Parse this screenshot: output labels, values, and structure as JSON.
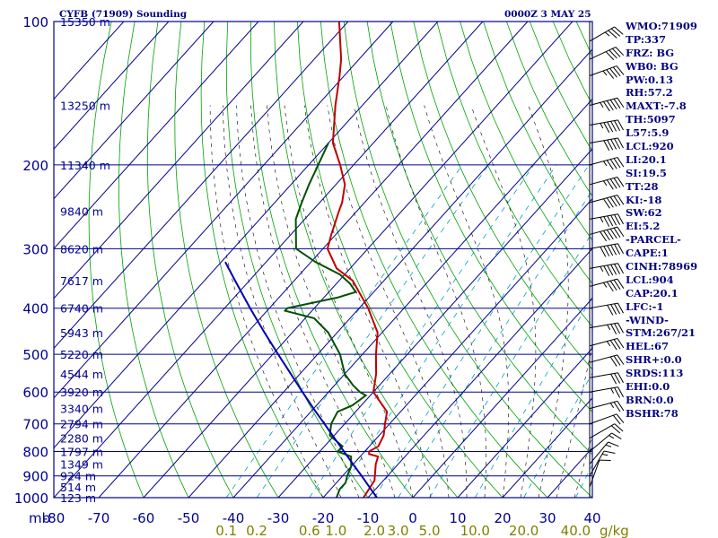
{
  "header": {
    "title": "CYFB (71909) Sounding",
    "time": "0000Z  3 MAY 25"
  },
  "stats": [
    "WMO:71909",
    "TP:337",
    "FRZ: BG",
    "WB0: BG",
    "PW:0.13",
    "RH:57.2",
    "MAXT:-7.8",
    "TH:5097",
    "L57:5.9",
    "LCL:920",
    "LI:20.1",
    "SI:19.5",
    "TT:28",
    "KI:-18",
    "SW:62",
    "EI:5.2",
    "-PARCEL-",
    "CAPE:1",
    "CINH:78969",
    "LCL:904",
    "CAP:20.1",
    "LFC:-1",
    "-WIND-",
    "STM:267/21",
    "HEL:67",
    "SHR+:0.0",
    "SRDS:113",
    "EHI:0.0",
    "BRN:0.0",
    "BSHR:78"
  ],
  "colors": {
    "axis": "#000090",
    "isotherm": "#000090",
    "dry_adiabat": "#00a000",
    "moist_adiabat": "#000000",
    "mixing_ratio": "#00a0c0",
    "temperature": "#c00000",
    "dewpoint": "#005000",
    "parcel": "#0000b0",
    "barb": "#000000",
    "mixing_label": "#808000"
  },
  "chart_data": {
    "type": "skew-t",
    "y_axis": "pressure (mb), log scale",
    "ylim": [
      1000,
      100
    ],
    "xlim": [
      -80,
      40
    ],
    "pressure_ticks": [
      100,
      200,
      300,
      400,
      500,
      600,
      700,
      800,
      900,
      1000
    ],
    "pressure_unit": "mb",
    "temperature_ticks": [
      -80,
      -70,
      -60,
      -50,
      -40,
      -30,
      -20,
      -10,
      0,
      10,
      20,
      30,
      40
    ],
    "mixing_ratio_labels": [
      "0.1",
      "0.2",
      "0.6",
      "1.0",
      "2.0",
      "3.0",
      "5.0",
      "10.0",
      "20.0",
      "40.0"
    ],
    "mixing_ratio_unit": "g/kg",
    "height_labels": [
      {
        "p": 100,
        "text": "15350 m"
      },
      {
        "p": 150,
        "text": "13250 m"
      },
      {
        "p": 200,
        "text": "11340 m"
      },
      {
        "p": 250,
        "text": "9840 m"
      },
      {
        "p": 300,
        "text": "8620 m"
      },
      {
        "p": 350,
        "text": "7617 m"
      },
      {
        "p": 400,
        "text": "6740 m"
      },
      {
        "p": 450,
        "text": "5943 m"
      },
      {
        "p": 500,
        "text": "5220 m"
      },
      {
        "p": 550,
        "text": "4544 m"
      },
      {
        "p": 600,
        "text": "3920 m"
      },
      {
        "p": 650,
        "text": "3340 m"
      },
      {
        "p": 700,
        "text": "2794 m"
      },
      {
        "p": 750,
        "text": "2280 m"
      },
      {
        "p": 800,
        "text": "1797 m"
      },
      {
        "p": 850,
        "text": "1349 m"
      },
      {
        "p": 900,
        "text": "924 m"
      },
      {
        "p": 950,
        "text": "514 m"
      },
      {
        "p": 1000,
        "text": "123 m"
      }
    ],
    "series": [
      {
        "key": "temperature",
        "points": [
          [
            1000,
            -11
          ],
          [
            920,
            -12
          ],
          [
            850,
            -15
          ],
          [
            820,
            -16
          ],
          [
            810,
            -18.5
          ],
          [
            800,
            -19
          ],
          [
            780,
            -18
          ],
          [
            740,
            -19
          ],
          [
            700,
            -21
          ],
          [
            660,
            -23
          ],
          [
            600,
            -30
          ],
          [
            550,
            -33
          ],
          [
            500,
            -37
          ],
          [
            450,
            -41
          ],
          [
            400,
            -48
          ],
          [
            350,
            -57
          ],
          [
            330,
            -63
          ],
          [
            300,
            -69
          ],
          [
            280,
            -71
          ],
          [
            250,
            -74
          ],
          [
            240,
            -75
          ],
          [
            220,
            -78
          ],
          [
            200,
            -83
          ],
          [
            180,
            -89
          ],
          [
            150,
            -96
          ],
          [
            130,
            -101
          ],
          [
            120,
            -104
          ],
          [
            100,
            -112
          ]
        ]
      },
      {
        "key": "dewpoint",
        "points": [
          [
            1000,
            -17
          ],
          [
            960,
            -18
          ],
          [
            930,
            -18
          ],
          [
            900,
            -19
          ],
          [
            860,
            -20
          ],
          [
            820,
            -22
          ],
          [
            800,
            -26
          ],
          [
            780,
            -26
          ],
          [
            740,
            -31
          ],
          [
            700,
            -33
          ],
          [
            660,
            -34
          ],
          [
            640,
            -32
          ],
          [
            610,
            -31
          ],
          [
            600,
            -33
          ],
          [
            580,
            -36
          ],
          [
            550,
            -40
          ],
          [
            500,
            -45
          ],
          [
            450,
            -52
          ],
          [
            420,
            -58
          ],
          [
            405,
            -66
          ],
          [
            400,
            -66
          ],
          [
            380,
            -57
          ],
          [
            370,
            -54
          ],
          [
            355,
            -57
          ],
          [
            340,
            -61
          ],
          [
            320,
            -69
          ],
          [
            300,
            -76
          ],
          [
            260,
            -82
          ],
          [
            240,
            -84
          ],
          [
            220,
            -86
          ],
          [
            180,
            -90
          ]
        ]
      },
      {
        "key": "parcel",
        "points": [
          [
            1000,
            -8
          ],
          [
            950,
            -11.8
          ],
          [
            900,
            -15.8
          ],
          [
            850,
            -20.1
          ],
          [
            800,
            -24.6
          ],
          [
            750,
            -29.4
          ],
          [
            700,
            -34.5
          ],
          [
            650,
            -40
          ],
          [
            600,
            -45.8
          ],
          [
            550,
            -52
          ],
          [
            500,
            -58.8
          ],
          [
            450,
            -66.2
          ],
          [
            400,
            -74.3
          ],
          [
            350,
            -83.2
          ],
          [
            320,
            -89.1
          ]
        ]
      }
    ],
    "wind_barbs": [
      {
        "p": 110,
        "dir": 300,
        "kt": 35
      },
      {
        "p": 120,
        "dir": 295,
        "kt": 40
      },
      {
        "p": 130,
        "dir": 290,
        "kt": 45
      },
      {
        "p": 150,
        "dir": 285,
        "kt": 55
      },
      {
        "p": 165,
        "dir": 280,
        "kt": 55
      },
      {
        "p": 180,
        "dir": 280,
        "kt": 50
      },
      {
        "p": 200,
        "dir": 285,
        "kt": 45
      },
      {
        "p": 220,
        "dir": 285,
        "kt": 45
      },
      {
        "p": 240,
        "dir": 285,
        "kt": 50
      },
      {
        "p": 260,
        "dir": 280,
        "kt": 55
      },
      {
        "p": 280,
        "dir": 285,
        "kt": 60
      },
      {
        "p": 300,
        "dir": 280,
        "kt": 60
      },
      {
        "p": 330,
        "dir": 280,
        "kt": 55
      },
      {
        "p": 360,
        "dir": 285,
        "kt": 45
      },
      {
        "p": 400,
        "dir": 280,
        "kt": 40
      },
      {
        "p": 440,
        "dir": 280,
        "kt": 35
      },
      {
        "p": 480,
        "dir": 285,
        "kt": 35
      },
      {
        "p": 520,
        "dir": 285,
        "kt": 30
      },
      {
        "p": 560,
        "dir": 280,
        "kt": 30
      },
      {
        "p": 600,
        "dir": 280,
        "kt": 25
      },
      {
        "p": 650,
        "dir": 285,
        "kt": 25
      },
      {
        "p": 700,
        "dir": 290,
        "kt": 20
      },
      {
        "p": 750,
        "dir": 300,
        "kt": 20
      },
      {
        "p": 800,
        "dir": 310,
        "kt": 15
      },
      {
        "p": 850,
        "dir": 320,
        "kt": 15
      },
      {
        "p": 900,
        "dir": 330,
        "kt": 15
      },
      {
        "p": 950,
        "dir": 340,
        "kt": 10
      }
    ]
  }
}
